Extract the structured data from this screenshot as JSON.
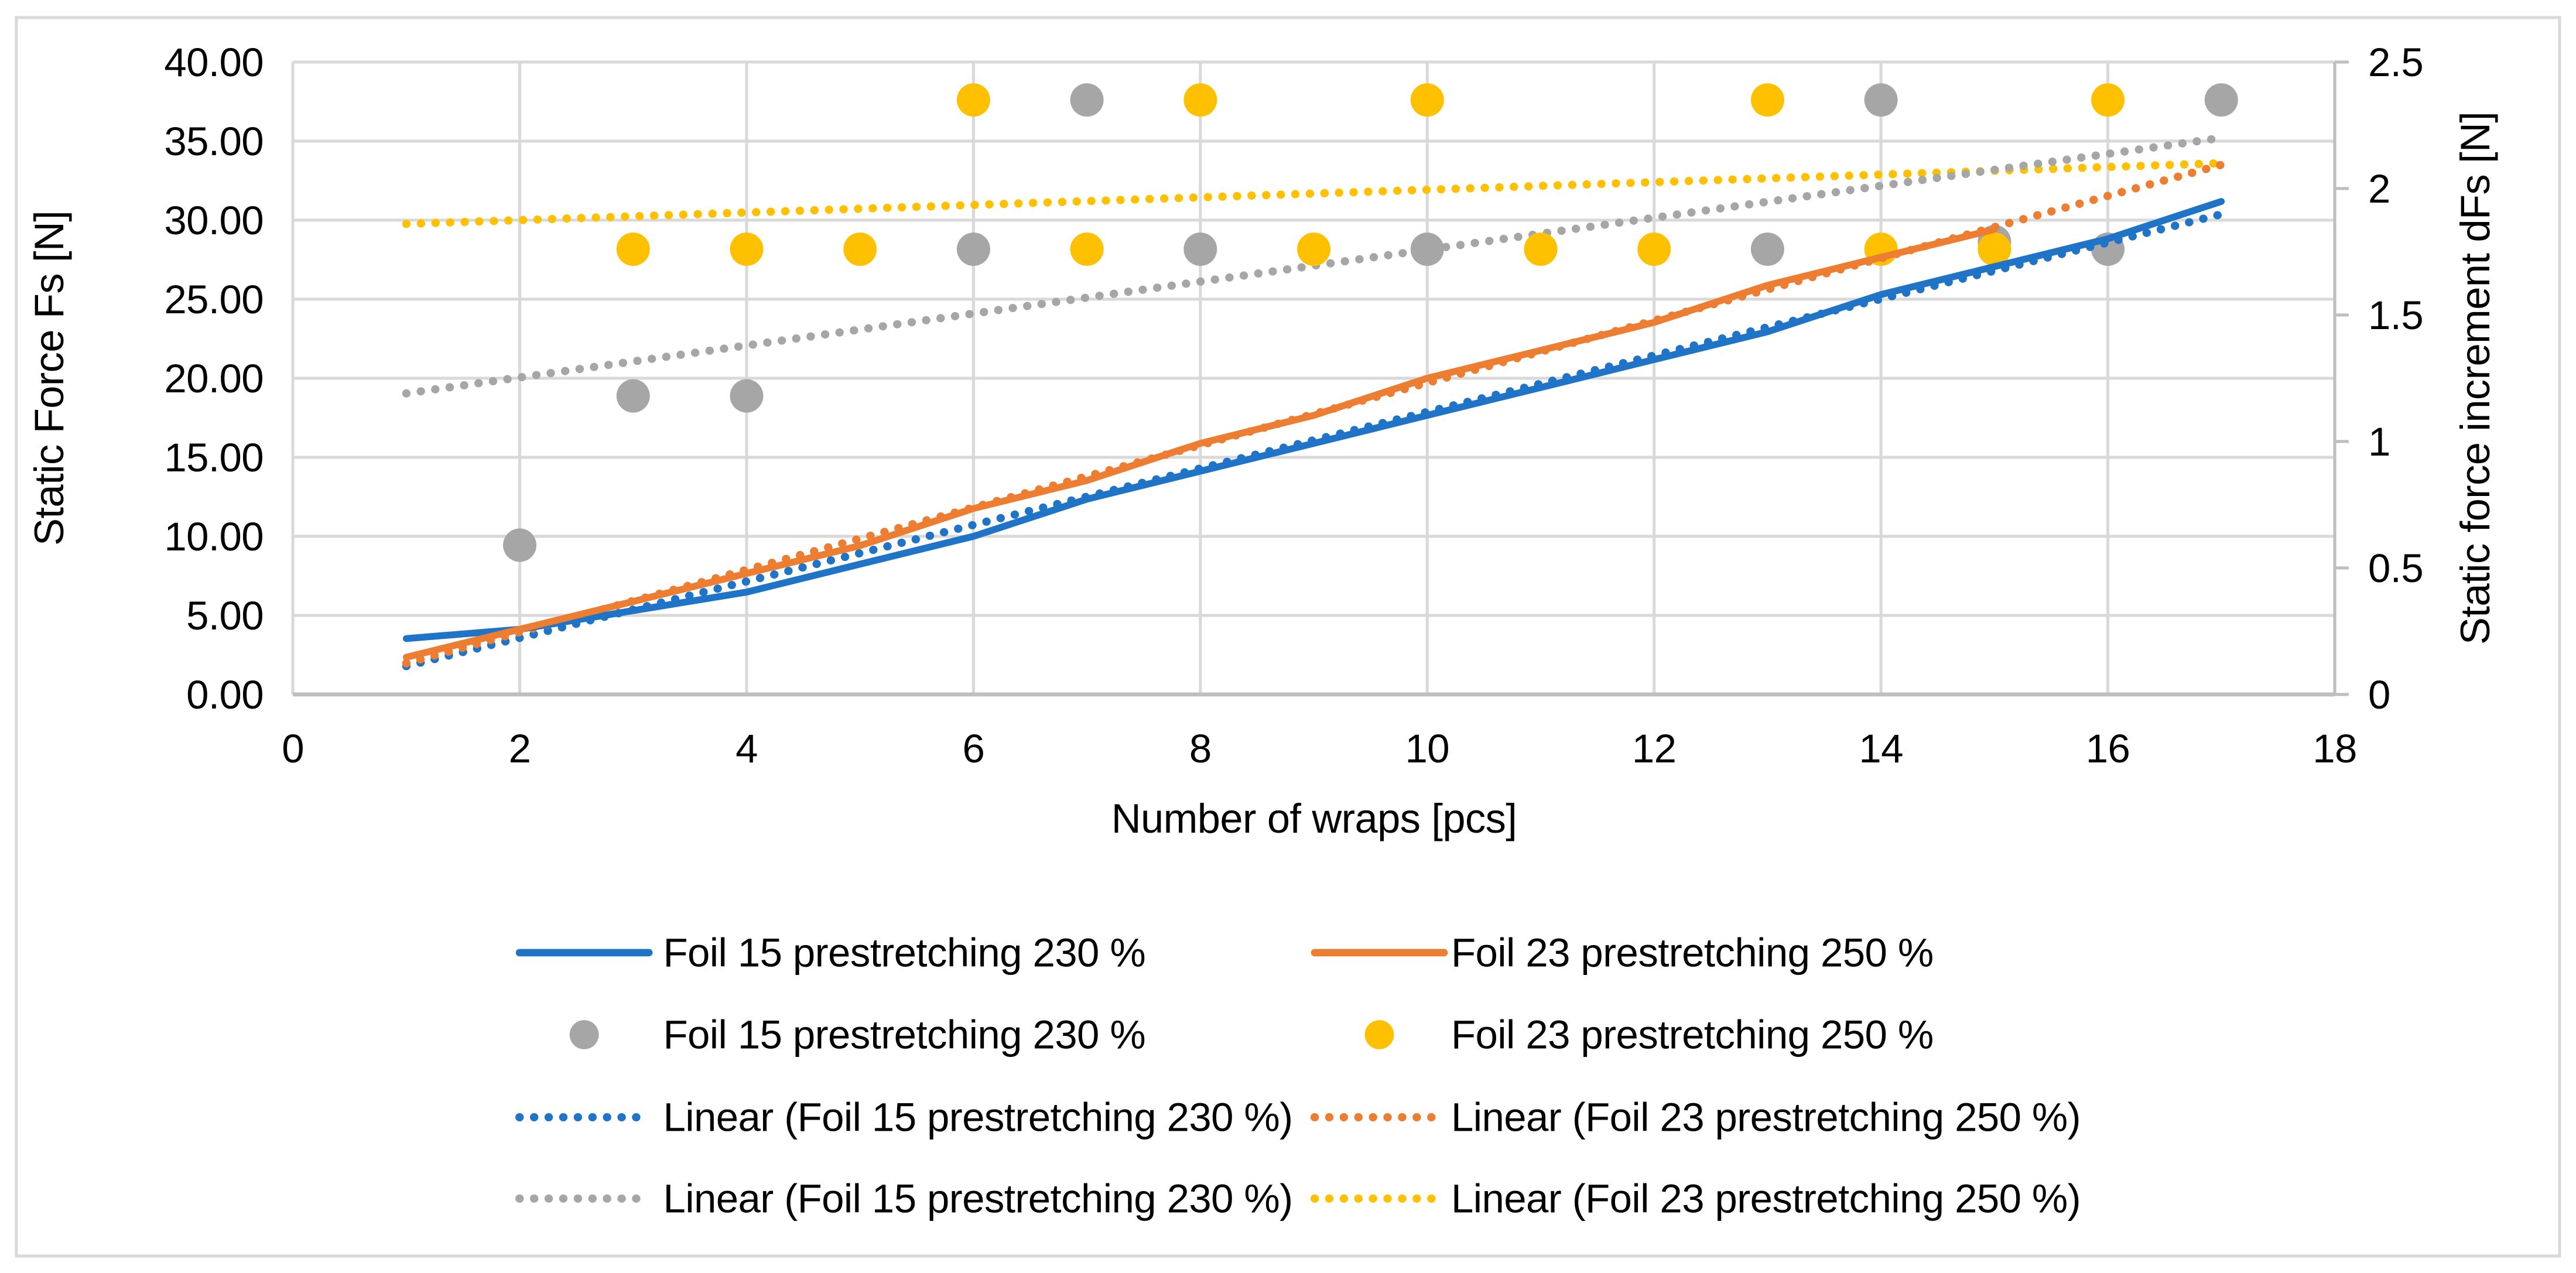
{
  "figure": {
    "background": "#FFFFFF",
    "border_color": "#D9D9D9"
  },
  "colors": {
    "blue": "#1F74C8",
    "orange": "#ED7D31",
    "gray": "#A6A6A6",
    "yellow": "#FFC000",
    "grid": "#D9D9D9",
    "axis": "#BFBFBF",
    "text": "#000000"
  },
  "chart_data": {
    "type": "line+scatter",
    "grid": true,
    "x_axis": {
      "title": "Number of wraps [pcs]",
      "min": 0,
      "max": 18,
      "tick_step": 2,
      "tick_labels": [
        "0",
        "2",
        "4",
        "6",
        "8",
        "10",
        "12",
        "14",
        "16",
        "18"
      ]
    },
    "y_left": {
      "title": "Static Force Fs [N]",
      "min": 0,
      "max": 40,
      "tick_step": 5,
      "tick_labels": [
        "0.00",
        "5.00",
        "10.00",
        "15.00",
        "20.00",
        "25.00",
        "30.00",
        "35.00",
        "40.00"
      ]
    },
    "y_right": {
      "title": "Static force increment dFs [N]",
      "min": 0,
      "max": 2.5,
      "tick_step": 0.5,
      "tick_labels": [
        "0",
        "0.5",
        "1",
        "1.5",
        "2",
        "2.5"
      ]
    },
    "series": [
      {
        "id": "trend-foil23-increment",
        "label": "Linear (Foil 23 prestretching 250 %)",
        "type": "trend",
        "axis": "right",
        "color": "yellow",
        "x": [
          1,
          17
        ],
        "y": [
          1.86,
          2.1
        ]
      },
      {
        "id": "trend-foil15-increment",
        "label": "Linear (Foil 15 prestretching 230 %)",
        "type": "trend",
        "axis": "right",
        "color": "gray",
        "x": [
          1,
          17
        ],
        "y": [
          1.19,
          2.2
        ]
      },
      {
        "id": "foil15-increment",
        "label": "Foil 15 prestretching 230 %",
        "type": "dots",
        "axis": "right",
        "color": "gray",
        "x": [
          2,
          3,
          4,
          6,
          7,
          8,
          10,
          13,
          14,
          15,
          16,
          17
        ],
        "y": [
          0.59,
          1.18,
          1.18,
          1.76,
          2.35,
          1.76,
          1.76,
          1.76,
          2.35,
          1.79,
          1.76,
          2.35
        ]
      },
      {
        "id": "foil23-increment",
        "label": "Foil 23 prestretching 250 %",
        "type": "dots",
        "axis": "right",
        "color": "yellow",
        "x": [
          3,
          4,
          5,
          6,
          7,
          8,
          9,
          10,
          11,
          12,
          13,
          14,
          15,
          16
        ],
        "y": [
          1.76,
          1.76,
          1.76,
          2.35,
          1.76,
          2.35,
          1.76,
          2.35,
          1.76,
          1.76,
          2.35,
          1.76,
          1.76,
          2.35
        ]
      },
      {
        "id": "trend-foil15-force",
        "label": "Linear (Foil 15 prestretching 230 %)",
        "type": "trend",
        "axis": "left",
        "color": "blue",
        "x": [
          1,
          17
        ],
        "y": [
          1.79,
          30.37
        ]
      },
      {
        "id": "trend-foil23-force",
        "label": "Linear (Foil 23 prestretching 250 %)",
        "type": "trend",
        "axis": "left",
        "color": "orange",
        "x": [
          1,
          17
        ],
        "y": [
          1.97,
          33.5
        ]
      },
      {
        "id": "foil15-force",
        "label": "Foil 15 prestretching 230 %",
        "type": "line",
        "axis": "left",
        "color": "blue",
        "x": [
          1,
          2,
          3,
          4,
          5,
          6,
          7,
          8,
          9,
          10,
          11,
          12,
          13,
          14,
          15,
          16,
          17
        ],
        "y": [
          3.53,
          4.12,
          5.3,
          6.47,
          8.24,
          10.0,
          12.35,
          14.12,
          15.88,
          17.65,
          19.41,
          21.18,
          22.94,
          25.29,
          27.06,
          28.82,
          31.18
        ]
      },
      {
        "id": "foil23-force",
        "label": "Foil 23 prestretching 250 %",
        "type": "line",
        "axis": "left",
        "color": "orange",
        "x": [
          1,
          2,
          3,
          4,
          5,
          6,
          7,
          8,
          9,
          10,
          11,
          12,
          13,
          14,
          15
        ],
        "y": [
          2.35,
          4.12,
          5.88,
          7.65,
          9.41,
          11.76,
          13.53,
          15.88,
          17.65,
          20.0,
          21.76,
          23.53,
          25.88,
          27.65,
          29.41
        ]
      }
    ],
    "legend": {
      "position": "bottom",
      "columns": [
        [
          {
            "marker": "line",
            "color": "blue",
            "label": "Foil 15 prestretching 230 %"
          },
          {
            "marker": "dot",
            "color": "gray",
            "label": "Foil 15 prestretching 230 %"
          },
          {
            "marker": "dotted",
            "color": "blue",
            "label": "Linear (Foil 15 prestretching 230 %)"
          },
          {
            "marker": "dotted",
            "color": "gray",
            "label": "Linear (Foil 15 prestretching 230 %)"
          }
        ],
        [
          {
            "marker": "line",
            "color": "orange",
            "label": "Foil 23 prestretching 250 %"
          },
          {
            "marker": "dot",
            "color": "yellow",
            "label": "Foil 23 prestretching 250 %"
          },
          {
            "marker": "dotted",
            "color": "orange",
            "label": "Linear (Foil 23 prestretching 250 %)"
          },
          {
            "marker": "dotted",
            "color": "yellow",
            "label": "Linear (Foil 23 prestretching 250 %)"
          }
        ]
      ]
    }
  }
}
